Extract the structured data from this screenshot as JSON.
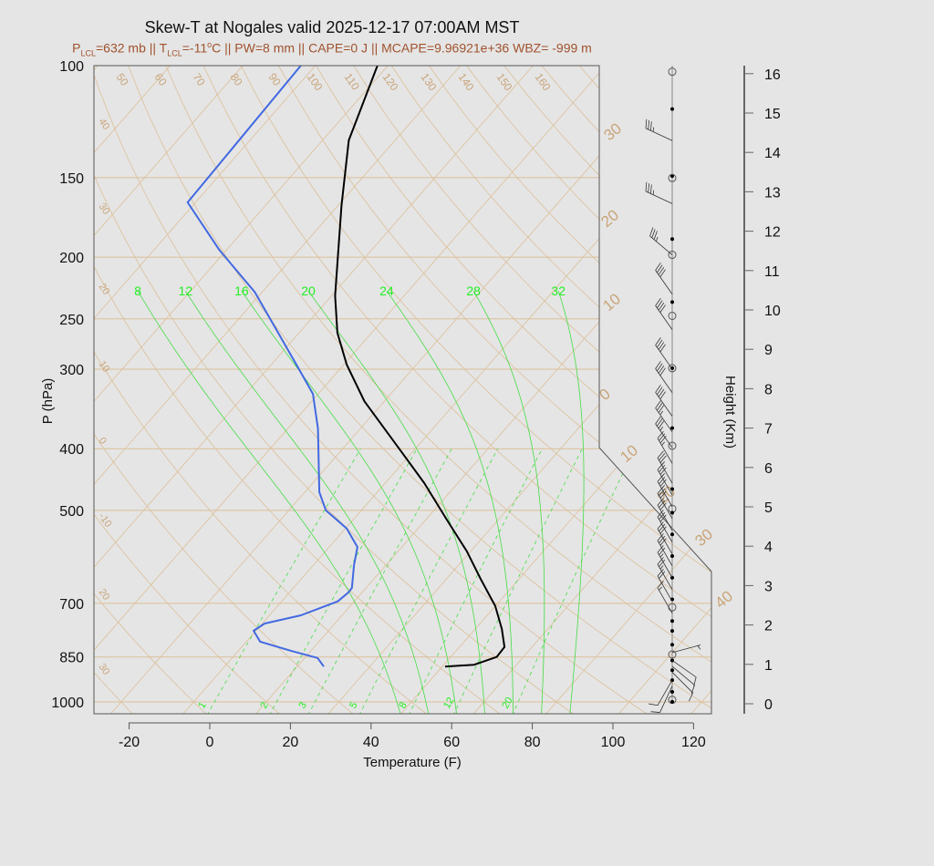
{
  "title": "Skew-T at Nogales valid 2025-12-17 07:00AM MST",
  "subtitle": {
    "p_sym": "P",
    "p_sub": "LCL",
    "p_val": "=632 mb || ",
    "t_sym": "T",
    "t_sub": "LCL",
    "t_val": "=-11",
    "deg": "o",
    "rest": "C || PW=8 mm || CAPE=0 J || MCAPE=9.96921e+36 WBZ= -999 m"
  },
  "colors": {
    "background": "#e5e5e5",
    "temperature": "#000000",
    "dewpoint": "#4169e1",
    "isotherm": "#dcbf98",
    "dry_adiabat": "#dcbf98",
    "moist_adiabat": "#44dd44",
    "mixing_ratio": "#44dd44",
    "label_tan": "#c9a57a",
    "label_green": "#22ee22"
  },
  "chart_data": {
    "type": "skew-t",
    "title": "Skew-T at Nogales valid 2025-12-17 07:00AM MST",
    "xlabel": "Temperature (F)",
    "ylabel": "P (hPa)",
    "y2label": "Height (Km)",
    "xlim": [
      -28,
      125
    ],
    "ylim_hpa": [
      1050,
      100
    ],
    "y_scale": "log",
    "x_ticks": [
      -20,
      0,
      20,
      40,
      60,
      80,
      100,
      120
    ],
    "p_ticks": [
      100,
      150,
      200,
      250,
      300,
      400,
      500,
      700,
      850,
      1000
    ],
    "height_ticks_km": [
      0,
      1,
      2,
      3,
      4,
      5,
      6,
      7,
      8,
      9,
      10,
      11,
      12,
      13,
      14,
      15,
      16
    ],
    "isotherm_labels_c": [
      -30,
      -20,
      -10,
      0,
      10,
      20,
      30,
      40
    ],
    "isotherm_label_text": [
      "30",
      "20",
      "10",
      "0",
      "10",
      "20",
      "30",
      "40"
    ],
    "dry_adiabat_top_labels_c": [
      "50",
      "60",
      "70",
      "80",
      "90",
      "100",
      "110",
      "120",
      "130",
      "140",
      "150",
      "160"
    ],
    "dry_adiabat_left_labels_c": [
      "40",
      "30",
      "20",
      "10",
      "0",
      "-10",
      "20",
      "30"
    ],
    "moist_adiabat_labels_c": [
      "8",
      "12",
      "16",
      "20",
      "24",
      "28",
      "32"
    ],
    "moist_adiabat_values_c": [
      8,
      12,
      16,
      20,
      24,
      28,
      32
    ],
    "mixing_ratio_labels_gkg": [
      "1",
      "2",
      "3",
      "5",
      "8",
      "12",
      "20"
    ],
    "mixing_ratio_values_gkg": [
      1,
      2,
      3,
      5,
      8,
      12,
      20
    ],
    "temperature_f": {
      "p": [
        880,
        874,
        850,
        820,
        768,
        707,
        641,
        580,
        517,
        453,
        404,
        337,
        295,
        263,
        230,
        166,
        131,
        100
      ],
      "t": [
        50.7,
        57.5,
        61.4,
        61.2,
        56.6,
        50.0,
        40.5,
        31.1,
        19.2,
        5.7,
        -6.9,
        -26.9,
        -39.3,
        -48.5,
        -57.1,
        -75.1,
        -87.5,
        -96.6
      ]
    },
    "dewpoint_f": {
      "p": [
        880,
        853,
        832,
        804,
        773,
        753,
        731,
        695,
        673,
        662,
        610,
        571,
        534,
        500,
        468,
        372,
        328,
        295,
        227,
        195,
        164,
        100
      ],
      "t": [
        20.6,
        17.2,
        9.3,
        -0.6,
        -4.6,
        -3.4,
        3.8,
        9.9,
        10.6,
        10.5,
        6.1,
        3.0,
        -3.7,
        -12.8,
        -18.4,
        -32.5,
        -41.3,
        -51.8,
        -77.8,
        -95.7,
        -114.0,
        -115.6
      ]
    },
    "wind_markers": [
      {
        "km": 16.1,
        "type": "circle"
      },
      {
        "km": 15.1,
        "type": "dot"
      },
      {
        "km": 13.4,
        "type": "dot"
      },
      {
        "km": 13.4,
        "type": "circle"
      },
      {
        "km": 11.8,
        "type": "dot"
      },
      {
        "km": 11.4,
        "type": "circle"
      },
      {
        "km": 10.2,
        "type": "dot"
      },
      {
        "km": 9.8,
        "type": "circle"
      },
      {
        "km": 8.5,
        "type": "circle"
      },
      {
        "km": 8.5,
        "type": "dot"
      },
      {
        "km": 7.0,
        "type": "dot"
      },
      {
        "km": 6.6,
        "type": "circle"
      },
      {
        "km": 5.4,
        "type": "dot"
      },
      {
        "km": 4.93,
        "type": "circle"
      },
      {
        "km": 4.86,
        "type": "dot"
      },
      {
        "km": 4.3,
        "type": "dot"
      },
      {
        "km": 3.7,
        "type": "dot"
      },
      {
        "km": 3.1,
        "type": "dot"
      }
    ],
    "winds": [
      {
        "km": 14.3,
        "dir": 295,
        "kt": 35
      },
      {
        "km": 12.7,
        "dir": 295,
        "kt": 35
      },
      {
        "km": 11.4,
        "dir": 310,
        "kt": 35
      },
      {
        "km": 10.4,
        "dir": 325,
        "kt": 40
      },
      {
        "km": 9.5,
        "dir": 325,
        "kt": 40
      },
      {
        "km": 8.5,
        "dir": 325,
        "kt": 40
      },
      {
        "km": 7.9,
        "dir": 325,
        "kt": 40
      },
      {
        "km": 7.3,
        "dir": 325,
        "kt": 40
      },
      {
        "km": 6.9,
        "dir": 325,
        "kt": 35
      },
      {
        "km": 6.5,
        "dir": 325,
        "kt": 35
      },
      {
        "km": 6.1,
        "dir": 330,
        "kt": 35
      },
      {
        "km": 5.6,
        "dir": 330,
        "kt": 35
      },
      {
        "km": 5.3,
        "dir": 330,
        "kt": 35
      },
      {
        "km": 5.0,
        "dir": 330,
        "kt": 35
      },
      {
        "km": 4.7,
        "dir": 330,
        "kt": 30
      },
      {
        "km": 4.4,
        "dir": 330,
        "kt": 30
      },
      {
        "km": 4.1,
        "dir": 330,
        "kt": 30
      },
      {
        "km": 3.8,
        "dir": 330,
        "kt": 30
      },
      {
        "km": 3.5,
        "dir": 330,
        "kt": 30
      },
      {
        "km": 3.2,
        "dir": 330,
        "kt": 25
      },
      {
        "km": 2.9,
        "dir": 330,
        "kt": 25
      },
      {
        "km": 2.6,
        "dir": 330,
        "kt": 20
      },
      {
        "km": 2.3,
        "dir": 330,
        "kt": 15
      },
      {
        "km": 1.3,
        "dir": 75,
        "kt": 5
      },
      {
        "km": 1.1,
        "dir": 125,
        "kt": 10
      },
      {
        "km": 0.95,
        "dir": 130,
        "kt": 10
      },
      {
        "km": 0.8,
        "dir": 135,
        "kt": 10
      },
      {
        "km": 0.6,
        "dir": 210,
        "kt": 10
      },
      {
        "km": 0.45,
        "dir": 205,
        "kt": 10
      }
    ]
  }
}
